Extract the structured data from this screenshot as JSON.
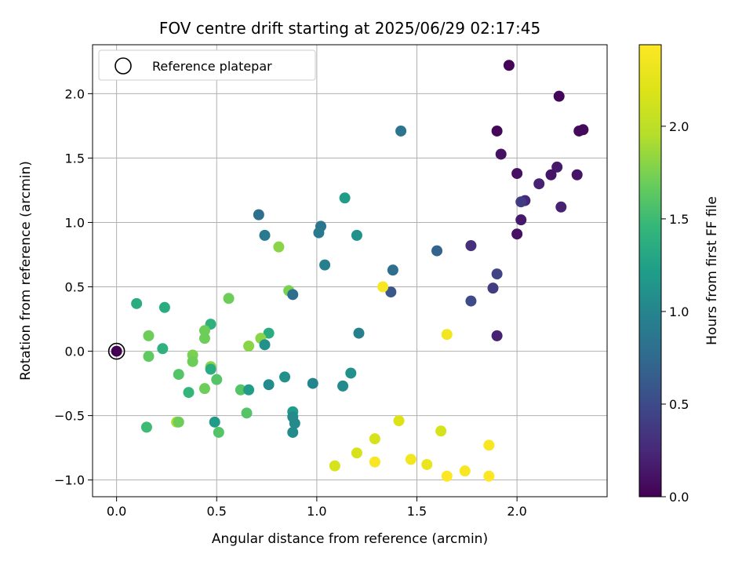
{
  "chart_data": {
    "type": "scatter",
    "title": "FOV centre drift starting at 2025/06/29 02:17:45",
    "xlabel": "Angular distance from reference (arcmin)",
    "ylabel": "Rotation from reference (arcmin)",
    "xlim": [
      -0.12,
      2.45
    ],
    "ylim": [
      -1.13,
      2.38
    ],
    "xticks": [
      0.0,
      0.5,
      1.0,
      1.5,
      2.0
    ],
    "xtick_labels": [
      "0.0",
      "0.5",
      "1.0",
      "1.5",
      "2.0"
    ],
    "yticks": [
      -1.0,
      -0.5,
      0.0,
      0.5,
      1.0,
      1.5,
      2.0
    ],
    "ytick_labels": [
      "−1.0",
      "−0.5",
      "0.0",
      "0.5",
      "1.0",
      "1.5",
      "2.0"
    ],
    "grid": true,
    "legend": {
      "placement": "top-left",
      "entries": [
        "Reference platepar"
      ]
    },
    "reference_point": {
      "x": 0.0,
      "y": 0.0,
      "label": "Reference platepar"
    },
    "colorbar": {
      "label": "Hours from first FF file",
      "colormap": "viridis",
      "range": [
        0.0,
        2.44
      ],
      "ticks": [
        0.0,
        0.5,
        1.0,
        1.5,
        2.0
      ],
      "tick_labels": [
        "0.0",
        "0.5",
        "1.0",
        "1.5",
        "2.0"
      ]
    },
    "series": [
      {
        "color_by": "hours",
        "points": [
          {
            "x": 1.96,
            "y": 2.22,
            "c": 0.02
          },
          {
            "x": 2.21,
            "y": 1.98,
            "c": 0.03
          },
          {
            "x": 1.9,
            "y": 1.71,
            "c": 0.04
          },
          {
            "x": 1.42,
            "y": 1.71,
            "c": 0.85
          },
          {
            "x": 2.31,
            "y": 1.71,
            "c": 0.05
          },
          {
            "x": 2.33,
            "y": 1.72,
            "c": 0.05
          },
          {
            "x": 1.92,
            "y": 1.53,
            "c": 0.1
          },
          {
            "x": 2.2,
            "y": 1.43,
            "c": 0.15
          },
          {
            "x": 2.0,
            "y": 1.38,
            "c": 0.1
          },
          {
            "x": 2.17,
            "y": 1.37,
            "c": 0.12
          },
          {
            "x": 2.3,
            "y": 1.37,
            "c": 0.12
          },
          {
            "x": 2.11,
            "y": 1.3,
            "c": 0.2
          },
          {
            "x": 2.04,
            "y": 1.17,
            "c": 0.25
          },
          {
            "x": 2.02,
            "y": 1.16,
            "c": 0.4
          },
          {
            "x": 2.22,
            "y": 1.12,
            "c": 0.2
          },
          {
            "x": 2.02,
            "y": 1.02,
            "c": 0.15
          },
          {
            "x": 2.0,
            "y": 0.91,
            "c": 0.1
          },
          {
            "x": 1.77,
            "y": 0.82,
            "c": 0.3
          },
          {
            "x": 1.6,
            "y": 0.78,
            "c": 0.7
          },
          {
            "x": 1.9,
            "y": 0.6,
            "c": 0.45
          },
          {
            "x": 1.88,
            "y": 0.49,
            "c": 0.4
          },
          {
            "x": 1.77,
            "y": 0.39,
            "c": 0.5
          },
          {
            "x": 1.9,
            "y": 0.12,
            "c": 0.2
          },
          {
            "x": 1.14,
            "y": 1.19,
            "c": 1.2
          },
          {
            "x": 0.71,
            "y": 1.06,
            "c": 0.8
          },
          {
            "x": 1.02,
            "y": 0.97,
            "c": 0.85
          },
          {
            "x": 1.01,
            "y": 0.92,
            "c": 0.9
          },
          {
            "x": 1.2,
            "y": 0.9,
            "c": 1.1
          },
          {
            "x": 0.74,
            "y": 0.9,
            "c": 0.9
          },
          {
            "x": 0.81,
            "y": 0.81,
            "c": 1.8
          },
          {
            "x": 1.04,
            "y": 0.67,
            "c": 0.95
          },
          {
            "x": 1.38,
            "y": 0.63,
            "c": 0.8
          },
          {
            "x": 1.37,
            "y": 0.46,
            "c": 0.6
          },
          {
            "x": 0.86,
            "y": 0.47,
            "c": 1.75
          },
          {
            "x": 0.88,
            "y": 0.44,
            "c": 0.8
          },
          {
            "x": 1.33,
            "y": 0.5,
            "c": 2.4
          },
          {
            "x": 0.56,
            "y": 0.41,
            "c": 1.7
          },
          {
            "x": 0.1,
            "y": 0.37,
            "c": 1.35
          },
          {
            "x": 0.24,
            "y": 0.34,
            "c": 1.35
          },
          {
            "x": 0.47,
            "y": 0.21,
            "c": 1.4
          },
          {
            "x": 0.44,
            "y": 0.16,
            "c": 1.7
          },
          {
            "x": 0.44,
            "y": 0.1,
            "c": 1.7
          },
          {
            "x": 0.16,
            "y": 0.12,
            "c": 1.7
          },
          {
            "x": 0.76,
            "y": 0.14,
            "c": 1.35
          },
          {
            "x": 0.72,
            "y": 0.1,
            "c": 1.8
          },
          {
            "x": 1.21,
            "y": 0.14,
            "c": 0.95
          },
          {
            "x": 1.65,
            "y": 0.13,
            "c": 2.35
          },
          {
            "x": 0.23,
            "y": 0.02,
            "c": 1.4
          },
          {
            "x": 0.66,
            "y": 0.04,
            "c": 1.8
          },
          {
            "x": 0.74,
            "y": 0.05,
            "c": 1.1
          },
          {
            "x": 0.38,
            "y": -0.03,
            "c": 1.75
          },
          {
            "x": 0.16,
            "y": -0.04,
            "c": 1.65
          },
          {
            "x": 0.38,
            "y": -0.08,
            "c": 1.7
          },
          {
            "x": 0.47,
            "y": -0.12,
            "c": 1.8
          },
          {
            "x": 0.47,
            "y": -0.14,
            "c": 1.35
          },
          {
            "x": 0.31,
            "y": -0.18,
            "c": 1.6
          },
          {
            "x": 0.5,
            "y": -0.22,
            "c": 1.6
          },
          {
            "x": 1.17,
            "y": -0.17,
            "c": 1.1
          },
          {
            "x": 0.84,
            "y": -0.2,
            "c": 1.1
          },
          {
            "x": 0.76,
            "y": -0.26,
            "c": 1.05
          },
          {
            "x": 0.98,
            "y": -0.25,
            "c": 1.0
          },
          {
            "x": 1.13,
            "y": -0.27,
            "c": 1.05
          },
          {
            "x": 0.36,
            "y": -0.32,
            "c": 1.45
          },
          {
            "x": 0.44,
            "y": -0.29,
            "c": 1.7
          },
          {
            "x": 0.62,
            "y": -0.3,
            "c": 1.6
          },
          {
            "x": 0.66,
            "y": -0.3,
            "c": 1.2
          },
          {
            "x": 0.88,
            "y": -0.47,
            "c": 1.2
          },
          {
            "x": 0.88,
            "y": -0.51,
            "c": 1.05
          },
          {
            "x": 0.65,
            "y": -0.48,
            "c": 1.6
          },
          {
            "x": 0.89,
            "y": -0.56,
            "c": 1.05
          },
          {
            "x": 0.49,
            "y": -0.55,
            "c": 1.2
          },
          {
            "x": 0.3,
            "y": -0.55,
            "c": 1.9
          },
          {
            "x": 0.31,
            "y": -0.55,
            "c": 1.7
          },
          {
            "x": 0.15,
            "y": -0.59,
            "c": 1.5
          },
          {
            "x": 0.51,
            "y": -0.63,
            "c": 1.6
          },
          {
            "x": 0.88,
            "y": -0.63,
            "c": 1.05
          },
          {
            "x": 1.41,
            "y": -0.54,
            "c": 2.2
          },
          {
            "x": 1.62,
            "y": -0.62,
            "c": 2.15
          },
          {
            "x": 1.29,
            "y": -0.68,
            "c": 2.15
          },
          {
            "x": 1.86,
            "y": -0.73,
            "c": 2.4
          },
          {
            "x": 1.2,
            "y": -0.79,
            "c": 2.15
          },
          {
            "x": 1.47,
            "y": -0.84,
            "c": 2.35
          },
          {
            "x": 1.29,
            "y": -0.86,
            "c": 2.4
          },
          {
            "x": 1.55,
            "y": -0.88,
            "c": 2.3
          },
          {
            "x": 1.09,
            "y": -0.89,
            "c": 2.15
          },
          {
            "x": 1.74,
            "y": -0.93,
            "c": 2.4
          },
          {
            "x": 1.65,
            "y": -0.97,
            "c": 2.44
          },
          {
            "x": 1.86,
            "y": -0.97,
            "c": 2.44
          }
        ]
      }
    ]
  }
}
